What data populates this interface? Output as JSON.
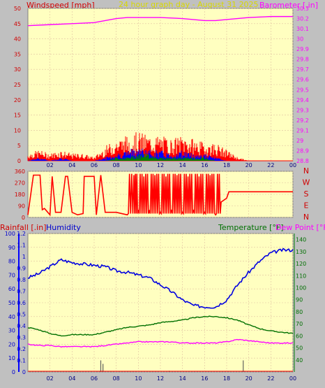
{
  "header": {
    "title": "24 hour graph day - August 31 2025",
    "left_label": "Windspeed [mph]",
    "right_label": "Barometer [.in]"
  },
  "humidity_header": {
    "rain_label": "Rainfall [.in]",
    "humidity_label": "Humidity",
    "temp_label": "Temperature [°F]",
    "dew_label": "Dew Point [°F]"
  },
  "x_ticks": [
    "02",
    "04",
    "06",
    "08",
    "10",
    "12",
    "14",
    "16",
    "18",
    "20",
    "22",
    "00"
  ],
  "colors": {
    "panel_bg": "#ffffc0",
    "wind": "#ff0000",
    "gust": "#0000ff",
    "avg": "#008000",
    "baro": "#ff00ff",
    "humidity": "#0000e0",
    "temperature": "#007000",
    "dewpoint": "#ff00ff",
    "rain": "#0000c0"
  },
  "chart_data": [
    {
      "type": "line",
      "panel": "wind_barometer",
      "ylim_left": [
        0,
        50
      ],
      "ylim_right": [
        28.8,
        30.3
      ],
      "left_ticks": [
        0,
        5,
        10,
        15,
        20,
        25,
        30,
        35,
        40,
        45,
        50
      ],
      "right_ticks": [
        "28.8",
        "28.9",
        "29",
        "29.1",
        "29.2",
        "29.3",
        "29.4",
        "29.5",
        "29.6",
        "29.7",
        "29.8",
        "29.9",
        "30",
        "30.1",
        "30.2",
        "30.3"
      ],
      "series": [
        {
          "role": "barometer",
          "hours": [
            0,
            2,
            4,
            6,
            7,
            8,
            9,
            10,
            12,
            14,
            16,
            17,
            18,
            20,
            22,
            24
          ],
          "values": [
            30.13,
            30.14,
            30.15,
            30.16,
            30.18,
            30.2,
            30.21,
            30.21,
            30.21,
            30.2,
            30.18,
            30.18,
            30.19,
            30.21,
            30.22,
            30.22
          ]
        },
        {
          "role": "wind_high",
          "hours": [
            0,
            1,
            2,
            3,
            4,
            5,
            6,
            7,
            8,
            9,
            10,
            11,
            12,
            13,
            14,
            15,
            16,
            17,
            18,
            19,
            20,
            21,
            22,
            23,
            24
          ],
          "values": [
            2,
            3,
            2,
            3,
            2,
            2,
            1,
            4,
            6,
            7,
            8,
            7,
            7,
            6,
            7,
            6,
            5,
            5,
            3,
            1,
            0,
            0,
            0,
            0,
            0
          ]
        },
        {
          "role": "wind_mid",
          "hours": [
            0,
            1,
            2,
            3,
            4,
            5,
            6,
            7,
            8,
            9,
            10,
            11,
            12,
            13,
            14,
            15,
            16,
            17,
            18,
            19,
            20,
            21,
            22,
            23,
            24
          ],
          "values": [
            0,
            1,
            0,
            1,
            0,
            0,
            0,
            1,
            2,
            3,
            4,
            3,
            3,
            2,
            3,
            2,
            2,
            1,
            0,
            0,
            0,
            0,
            0,
            0,
            0
          ]
        },
        {
          "role": "wind_low",
          "hours": [
            0,
            1,
            2,
            3,
            4,
            5,
            6,
            7,
            8,
            9,
            10,
            11,
            12,
            13,
            14,
            15,
            16,
            17,
            18,
            19,
            20,
            21,
            22,
            23,
            24
          ],
          "values": [
            0,
            0,
            0,
            0,
            0,
            0,
            0,
            0,
            1,
            1,
            2,
            2,
            1,
            1,
            1,
            1,
            1,
            0,
            0,
            0,
            0,
            0,
            0,
            0,
            0
          ]
        }
      ]
    },
    {
      "type": "line",
      "panel": "wind_direction",
      "ylim": [
        0,
        360
      ],
      "left_ticks": [
        0,
        90,
        180,
        270,
        360
      ],
      "right_labels": [
        "N",
        "W",
        "S",
        "E",
        "N"
      ],
      "series": [
        {
          "role": "direction",
          "hours": [
            0,
            0.5,
            1,
            1.1,
            1.3,
            1.5,
            1.8,
            2,
            2.2,
            2.5,
            3,
            3.4,
            3.6,
            4,
            4.5,
            5,
            5.1,
            5.5,
            6,
            6.2,
            6.6,
            7,
            8,
            9,
            9.6,
            10,
            10.5,
            11,
            11.5,
            12,
            12.5,
            13,
            13.5,
            14,
            14.5,
            15,
            15.5,
            16,
            16.5,
            17,
            17.5,
            18,
            18.2,
            24
          ],
          "values": [
            20,
            330,
            330,
            330,
            60,
            70,
            40,
            20,
            320,
            40,
            40,
            320,
            320,
            40,
            20,
            30,
            320,
            320,
            320,
            20,
            330,
            40,
            40,
            20,
            330,
            60,
            320,
            50,
            330,
            40,
            320,
            60,
            330,
            40,
            320,
            60,
            320,
            40,
            330,
            20,
            120,
            150,
            200,
            200
          ]
        }
      ]
    },
    {
      "type": "line",
      "panel": "temp_humidity",
      "ylim_left": [
        0,
        100
      ],
      "ylim_rain": [
        0,
        1.2
      ],
      "ylim_temp": [
        30,
        145
      ],
      "humidity_ticks": [
        0,
        10,
        20,
        30,
        40,
        50,
        60,
        70,
        80,
        90,
        100
      ],
      "rain_ticks": [
        "0",
        "0.1",
        "0.2",
        "0.3",
        "0.4",
        "0.5",
        "0.6",
        "0.7",
        "0.8",
        "0.9",
        "1",
        "1.1",
        "1.2"
      ],
      "temp_ticks": [
        40,
        50,
        60,
        70,
        80,
        90,
        100,
        110,
        120,
        130,
        140
      ],
      "series": [
        {
          "role": "humidity",
          "hours": [
            0,
            1,
            2,
            3,
            4,
            5,
            6,
            7,
            8,
            9,
            10,
            11,
            12,
            13,
            14,
            15,
            16,
            17,
            18,
            19,
            20,
            21,
            22,
            23,
            24
          ],
          "values": [
            68,
            71,
            76,
            81,
            79,
            78,
            77,
            76,
            73,
            72,
            70,
            68,
            63,
            58,
            52,
            48,
            47,
            47,
            52,
            63,
            72,
            80,
            86,
            88,
            88
          ]
        },
        {
          "role": "temperature",
          "hours": [
            0,
            1,
            2,
            3,
            4,
            5,
            6,
            7,
            8,
            9,
            10,
            11,
            12,
            13,
            14,
            15,
            16,
            17,
            18,
            19,
            20,
            21,
            22,
            23,
            24
          ],
          "values": [
            67,
            65,
            62,
            60,
            61,
            61,
            61,
            63,
            65,
            67,
            68,
            69,
            71,
            72,
            73,
            75,
            76,
            76,
            75,
            73,
            69,
            66,
            64,
            63,
            62
          ]
        },
        {
          "role": "dewpoint",
          "hours": [
            0,
            1,
            2,
            3,
            4,
            5,
            6,
            7,
            8,
            9,
            10,
            11,
            12,
            13,
            14,
            15,
            16,
            17,
            18,
            19,
            20,
            21,
            22,
            23,
            24
          ],
          "values": [
            53,
            52,
            52,
            51,
            51,
            51,
            51,
            52,
            53,
            54,
            55,
            55,
            55,
            55,
            54,
            54,
            54,
            54,
            55,
            57,
            56,
            55,
            54,
            54,
            54
          ]
        },
        {
          "role": "rain_ticks",
          "hours": [
            6.6,
            6.8,
            12.8,
            19.5
          ],
          "values": [
            0.1,
            0.07,
            0.01,
            0.1
          ]
        }
      ]
    }
  ]
}
